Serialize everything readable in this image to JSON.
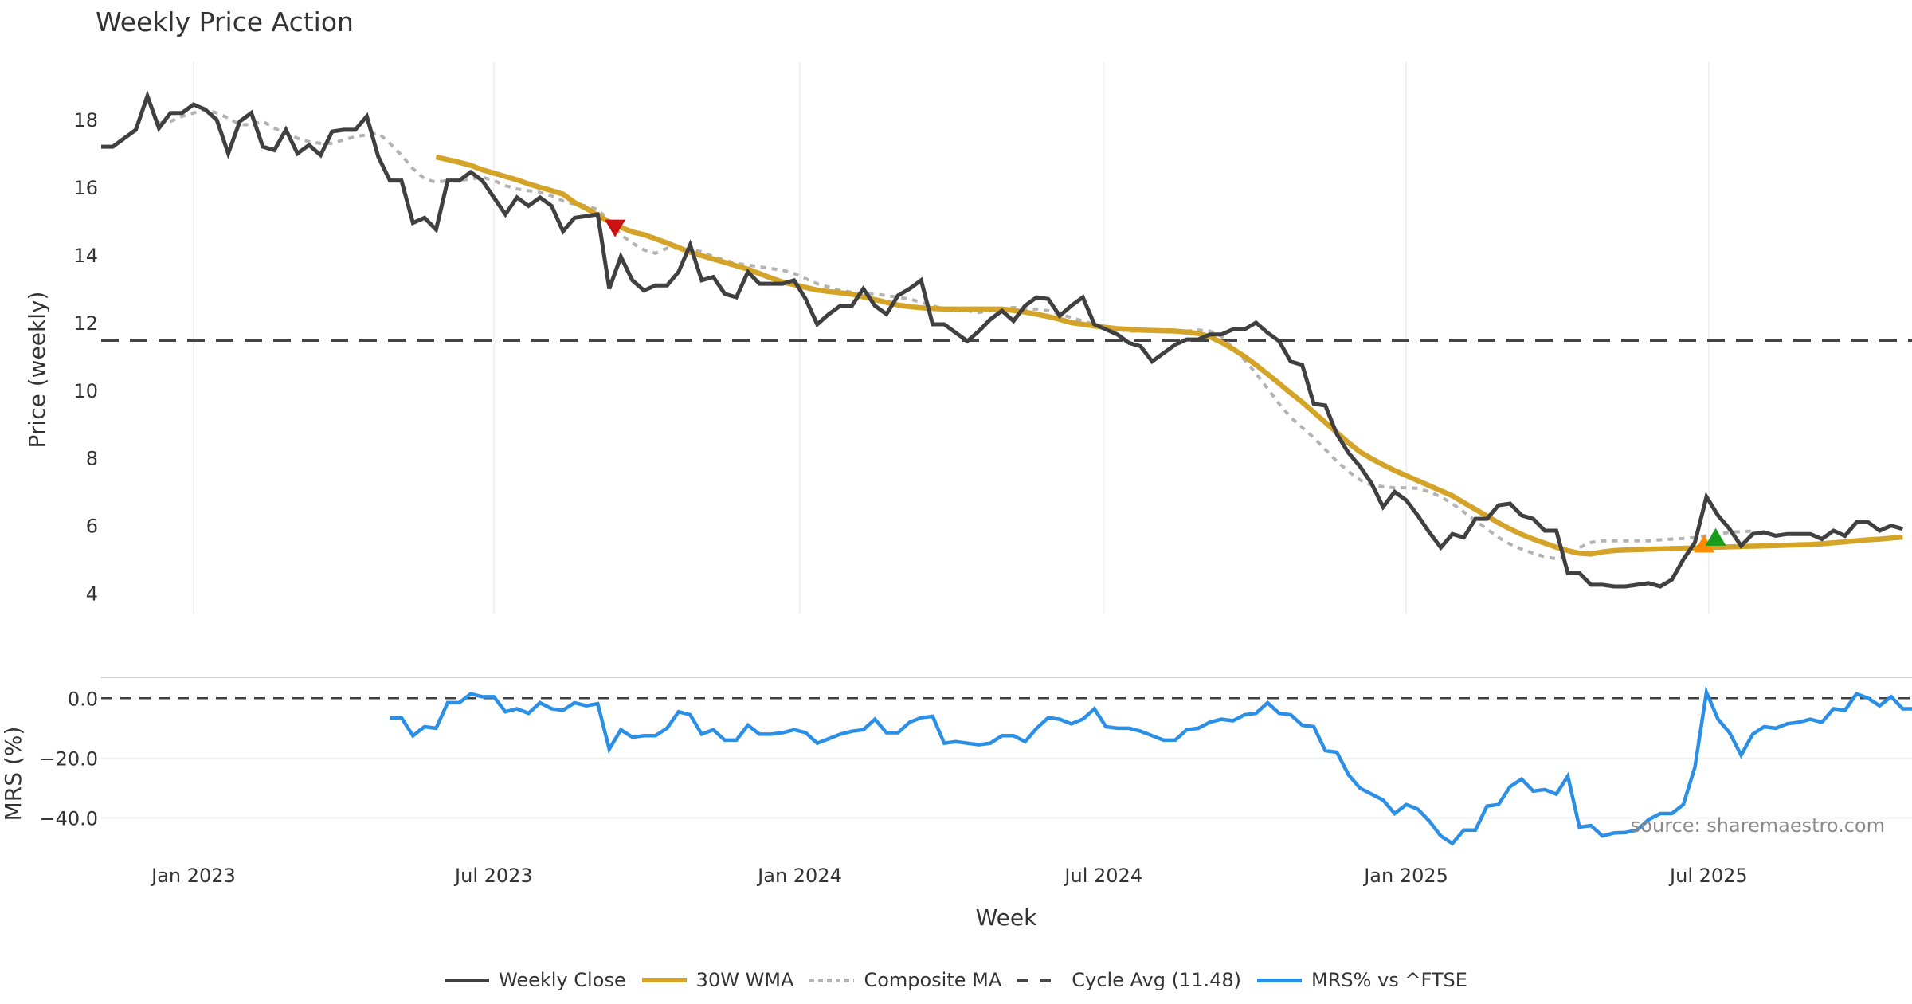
{
  "title": "Weekly Price Action",
  "watermark": "source: sharemaestro.com",
  "colors": {
    "weekly_close": "#404040",
    "wma": "#d4a429",
    "composite": "#b3b3b3",
    "cycle": "#454545",
    "mrs": "#2b8fe6",
    "sell_marker": "#cc1111",
    "buy_marker_orange": "#ff8c00",
    "buy_marker_green": "#1a9a1a",
    "grid": "#eef0f4"
  },
  "legend": [
    {
      "key": "weekly_close",
      "label": "Weekly Close",
      "style": "solid"
    },
    {
      "key": "wma",
      "label": "30W WMA",
      "style": "solid"
    },
    {
      "key": "composite",
      "label": "Composite MA",
      "style": "dotted"
    },
    {
      "key": "cycle",
      "label": "Cycle Avg (11.48)",
      "style": "dashed"
    },
    {
      "key": "mrs",
      "label": "MRS% vs ^FTSE",
      "style": "solid"
    }
  ],
  "chart_data": [
    {
      "type": "line",
      "title": "Weekly Price Action",
      "ylabel": "Price (weekly)",
      "xlabel": "Week",
      "x_unit": "week index (0 = early Nov 2022)",
      "xlim": [
        0,
        156.8
      ],
      "ylim": [
        3.4,
        19.7
      ],
      "yticks": [
        4,
        6,
        8,
        10,
        12,
        14,
        16,
        18
      ],
      "grid": "vertical",
      "cycle_avg": 11.48,
      "series": [
        {
          "name": "Weekly Close",
          "start": 0,
          "values": [
            17.2,
            17.2,
            17.45,
            17.7,
            18.7,
            17.75,
            18.2,
            18.2,
            18.45,
            18.3,
            18.0,
            17.0,
            17.95,
            18.2,
            17.2,
            17.1,
            17.7,
            17.0,
            17.25,
            16.95,
            17.65,
            17.7,
            17.7,
            18.1,
            16.9,
            16.2,
            16.2,
            14.95,
            15.1,
            14.75,
            16.2,
            16.2,
            16.45,
            16.2,
            15.7,
            15.2,
            15.7,
            15.45,
            15.7,
            15.45,
            14.7,
            15.1,
            15.15,
            15.2,
            13.0,
            13.95,
            13.25,
            12.95,
            13.1,
            13.1,
            13.5,
            14.3,
            13.25,
            13.35,
            12.85,
            12.75,
            13.5,
            13.15,
            13.15,
            13.15,
            13.25,
            12.7,
            11.95,
            12.25,
            12.5,
            12.5,
            13.0,
            12.5,
            12.25,
            12.8,
            13.0,
            13.25,
            11.95,
            11.95,
            11.7,
            11.45,
            11.75,
            12.1,
            12.35,
            12.05,
            12.5,
            12.75,
            12.7,
            12.2,
            12.5,
            12.75,
            11.95,
            11.8,
            11.65,
            11.4,
            11.3,
            10.85,
            11.1,
            11.35,
            11.5,
            11.5,
            11.65,
            11.65,
            11.8,
            11.8,
            12.0,
            11.7,
            11.45,
            10.85,
            10.75,
            9.6,
            9.55,
            8.7,
            8.15,
            7.75,
            7.25,
            6.55,
            7.0,
            6.75,
            6.3,
            5.8,
            5.35,
            5.75,
            5.65,
            6.2,
            6.2,
            6.6,
            6.65,
            6.3,
            6.2,
            5.85,
            5.85,
            4.6,
            4.6,
            4.25,
            4.25,
            4.2,
            4.2,
            4.25,
            4.3,
            4.2,
            4.4,
            5.0,
            5.5,
            6.85,
            6.3,
            5.9,
            5.4,
            5.75,
            5.8,
            5.7,
            5.75,
            5.75,
            5.75,
            5.6,
            5.85,
            5.7,
            6.1,
            6.1,
            5.85,
            6.0,
            5.9
          ]
        },
        {
          "name": "30W WMA",
          "start": 29,
          "values": [
            16.9,
            16.82,
            16.74,
            16.65,
            16.52,
            16.42,
            16.32,
            16.22,
            16.1,
            16.0,
            15.9,
            15.8,
            15.55,
            15.38,
            15.18,
            14.98,
            14.82,
            14.68,
            14.6,
            14.48,
            14.35,
            14.22,
            14.08,
            13.98,
            13.88,
            13.78,
            13.68,
            13.58,
            13.45,
            13.32,
            13.2,
            13.12,
            13.04,
            12.96,
            12.92,
            12.88,
            12.84,
            12.76,
            12.68,
            12.6,
            12.52,
            12.47,
            12.44,
            12.42,
            12.4,
            12.4,
            12.4,
            12.4,
            12.4,
            12.4,
            12.36,
            12.31,
            12.25,
            12.18,
            12.1,
            12.0,
            11.95,
            11.9,
            11.86,
            11.82,
            11.8,
            11.78,
            11.77,
            11.76,
            11.75,
            11.72,
            11.68,
            11.58,
            11.42,
            11.22,
            11.0,
            10.75,
            10.48,
            10.2,
            9.92,
            9.65,
            9.35,
            9.05,
            8.75,
            8.45,
            8.18,
            7.98,
            7.8,
            7.63,
            7.48,
            7.33,
            7.18,
            7.03,
            6.88,
            6.68,
            6.48,
            6.28,
            6.08,
            5.9,
            5.74,
            5.6,
            5.48,
            5.36,
            5.26,
            5.18,
            5.16,
            5.22,
            5.26,
            5.28,
            5.29,
            5.3,
            5.31,
            5.32,
            5.33,
            5.34,
            5.35,
            5.36,
            5.37,
            5.38,
            5.39,
            5.4,
            5.41,
            5.42,
            5.43,
            5.44,
            5.46,
            5.49,
            5.52,
            5.55,
            5.58,
            5.6,
            5.63,
            5.66
          ]
        },
        {
          "name": "Composite MA",
          "start": 5,
          "values": [
            17.9,
            17.95,
            18.1,
            18.2,
            18.3,
            18.2,
            18.05,
            17.85,
            17.85,
            17.95,
            17.75,
            17.6,
            17.45,
            17.35,
            17.3,
            17.3,
            17.4,
            17.5,
            17.55,
            17.6,
            17.3,
            16.95,
            16.55,
            16.25,
            16.15,
            16.2,
            16.2,
            16.25,
            16.3,
            16.2,
            16.05,
            15.95,
            15.9,
            15.85,
            15.75,
            15.6,
            15.5,
            15.45,
            15.35,
            15.0,
            14.6,
            14.35,
            14.15,
            14.05,
            14.2,
            14.2,
            14.15,
            14.1,
            13.95,
            13.85,
            13.75,
            13.7,
            13.65,
            13.6,
            13.55,
            13.45,
            13.3,
            13.15,
            13.05,
            12.95,
            12.9,
            12.85,
            12.85,
            12.8,
            12.75,
            12.7,
            12.6,
            12.5,
            12.4,
            12.35,
            12.35,
            12.3,
            12.35,
            12.4,
            12.45,
            12.4,
            12.4,
            12.35,
            12.25,
            12.15,
            12.05,
            11.95,
            11.85,
            11.8,
            11.75,
            11.75,
            11.75,
            11.75,
            11.75,
            11.75,
            11.78,
            11.75,
            11.6,
            11.25,
            10.9,
            10.5,
            10.05,
            9.6,
            9.2,
            8.9,
            8.6,
            8.25,
            7.9,
            7.6,
            7.35,
            7.2,
            7.15,
            7.12,
            7.12,
            7.1,
            7.0,
            6.85,
            6.65,
            6.4,
            6.15,
            5.9,
            5.65,
            5.45,
            5.3,
            5.18,
            5.08,
            5.02,
            5.1,
            5.35,
            5.5,
            5.55,
            5.55,
            5.55,
            5.55,
            5.55,
            5.58,
            5.6,
            5.62,
            5.65,
            5.7,
            5.75,
            5.8,
            5.82,
            5.84
          ]
        }
      ],
      "markers": [
        {
          "type": "sell",
          "shape": "triangle-down",
          "x": 44.5,
          "y": 14.8
        },
        {
          "type": "buy",
          "shape": "triangle-up",
          "x": 138.8,
          "y": 5.45
        },
        {
          "type": "buy",
          "shape": "triangle-up",
          "x": 139.8,
          "y": 5.65
        }
      ]
    },
    {
      "type": "line",
      "ylabel": "MRS (%)",
      "xlabel": "Week",
      "ylim": [
        -51,
        7
      ],
      "yticks": [
        0.0,
        -20.0,
        -40.0
      ],
      "ytick_labels": [
        "0.0",
        "−20.0",
        "−40.0"
      ],
      "xticks": [
        {
          "x": 8,
          "label": "Jan 2023"
        },
        {
          "x": 34,
          "label": "Jul 2023"
        },
        {
          "x": 60.5,
          "label": "Jan 2024"
        },
        {
          "x": 86.8,
          "label": "Jul 2024"
        },
        {
          "x": 113,
          "label": "Jan 2025"
        },
        {
          "x": 139.2,
          "label": "Jul 2025"
        }
      ],
      "zero_line": 0,
      "series": [
        {
          "name": "MRS% vs ^FTSE",
          "start": 25,
          "values": [
            -6.5,
            -6.5,
            -12.5,
            -9.5,
            -10,
            -1.5,
            -1.5,
            1.5,
            0.5,
            0.5,
            -4.5,
            -3.5,
            -5,
            -1.5,
            -3.5,
            -4,
            -1.5,
            -2.5,
            -1.8,
            -17,
            -10.5,
            -13,
            -12.5,
            -12.5,
            -10,
            -4.5,
            -5.5,
            -12,
            -10.5,
            -14,
            -14,
            -9,
            -12,
            -12,
            -11.5,
            -10.5,
            -11.5,
            -15,
            -13.5,
            -12,
            -11,
            -10.5,
            -7,
            -11.5,
            -11.5,
            -8,
            -6.5,
            -6,
            -15,
            -14.5,
            -15,
            -15.5,
            -15,
            -12.5,
            -12.5,
            -14.5,
            -10,
            -6.5,
            -7,
            -8.5,
            -7,
            -3.5,
            -9.5,
            -10,
            -10,
            -11,
            -12.5,
            -14,
            -14,
            -10.5,
            -10,
            -8,
            -7,
            -7.5,
            -5.5,
            -5,
            -1.5,
            -5,
            -5.5,
            -9,
            -9.5,
            -17.5,
            -18,
            -25.5,
            -30,
            -32,
            -34,
            -38.5,
            -35.5,
            -37,
            -41,
            -46,
            -48.5,
            -44,
            -44,
            -36,
            -35.5,
            -29.5,
            -27,
            -31,
            -30.5,
            -32,
            -26,
            -43,
            -42.5,
            -46,
            -45,
            -44.8,
            -44,
            -40.5,
            -38.5,
            -38.5,
            -35.5,
            -23,
            2,
            -7,
            -11.5,
            -19,
            -12,
            -9.5,
            -10,
            -8.5,
            -8,
            -7,
            -8,
            -3.5,
            -4,
            1.5,
            0,
            -2.5,
            0.5,
            -3.5,
            -3.5
          ]
        }
      ]
    }
  ]
}
